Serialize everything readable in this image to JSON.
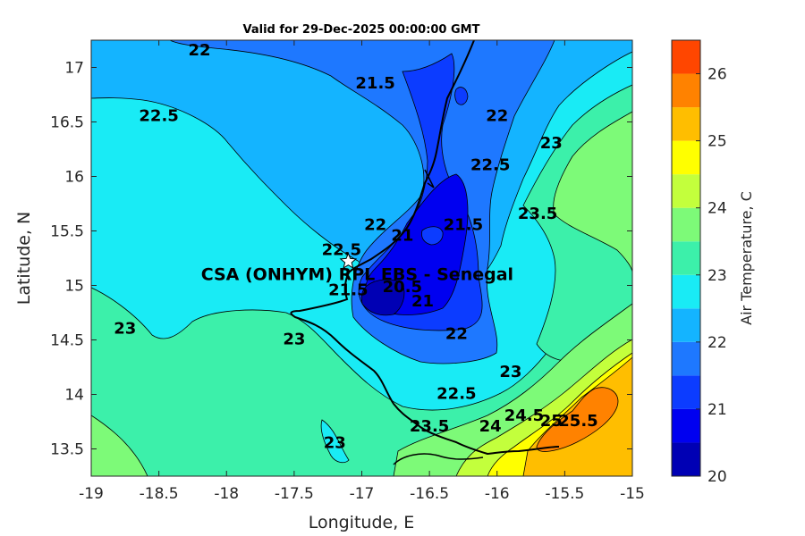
{
  "chart_data": {
    "type": "filled-contour-map",
    "title": "Valid for 29-Dec-2025 00:00:00 GMT",
    "xlabel": "Longitude, E",
    "ylabel": "Latitude, N",
    "xlim": [
      -19,
      -15
    ],
    "ylim": [
      13.25,
      17.25
    ],
    "xticks": [
      -19,
      -18.5,
      -18,
      -17.5,
      -17,
      -16.5,
      -16,
      -15.5,
      -15
    ],
    "yticks": [
      13.5,
      14,
      14.5,
      15,
      15.5,
      16,
      16.5,
      17
    ],
    "xtick_labels": [
      "-19",
      "-18.5",
      "-18",
      "-17.5",
      "-17",
      "-16.5",
      "-16",
      "-15.5",
      "-15"
    ],
    "ytick_labels": [
      "13.5",
      "14",
      "14.5",
      "15",
      "15.5",
      "16",
      "16.5",
      "17"
    ],
    "colorbar": {
      "label": "Air Temperature, C",
      "range": [
        20,
        26.5
      ],
      "ticks": [
        "20",
        "21",
        "22",
        "23",
        "24",
        "25",
        "26"
      ],
      "levels": [
        {
          "from": 20.0,
          "to": 20.5,
          "color": "#0000b4"
        },
        {
          "from": 20.5,
          "to": 21.0,
          "color": "#0000f0"
        },
        {
          "from": 21.0,
          "to": 21.5,
          "color": "#0c3cff"
        },
        {
          "from": 21.5,
          "to": 22.0,
          "color": "#1e78ff"
        },
        {
          "from": 22.0,
          "to": 22.5,
          "color": "#14b4ff"
        },
        {
          "from": 22.5,
          "to": 23.0,
          "color": "#19ebf5"
        },
        {
          "from": 23.0,
          "to": 23.5,
          "color": "#3cf0aa"
        },
        {
          "from": 23.5,
          "to": 24.0,
          "color": "#7dfa78"
        },
        {
          "from": 24.0,
          "to": 24.5,
          "color": "#c3ff3c"
        },
        {
          "from": 24.5,
          "to": 25.0,
          "color": "#ffff00"
        },
        {
          "from": 25.0,
          "to": 25.5,
          "color": "#ffbe00"
        },
        {
          "from": 25.5,
          "to": 26.0,
          "color": "#ff8200"
        },
        {
          "from": 26.0,
          "to": 26.5,
          "color": "#ff4600"
        },
        {
          "from": 26.5,
          "to": 27.0,
          "color": "#ff0000"
        }
      ]
    },
    "contour_labels": [
      {
        "text": "22",
        "lon": -18.2,
        "lat": 17.15
      },
      {
        "text": "21.5",
        "lon": -16.9,
        "lat": 16.85
      },
      {
        "text": "22.5",
        "lon": -18.5,
        "lat": 16.55
      },
      {
        "text": "22",
        "lon": -16.0,
        "lat": 16.55
      },
      {
        "text": "22.5",
        "lon": -16.05,
        "lat": 16.1
      },
      {
        "text": "23",
        "lon": -15.6,
        "lat": 16.3
      },
      {
        "text": "23.5",
        "lon": -15.7,
        "lat": 15.65
      },
      {
        "text": "22",
        "lon": -16.9,
        "lat": 15.55
      },
      {
        "text": "21",
        "lon": -16.7,
        "lat": 15.45
      },
      {
        "text": "21.5",
        "lon": -16.25,
        "lat": 15.55
      },
      {
        "text": "22.5",
        "lon": -17.15,
        "lat": 15.32
      },
      {
        "text": "21.5",
        "lon": -17.1,
        "lat": 14.95
      },
      {
        "text": "20.5",
        "lon": -16.7,
        "lat": 14.98
      },
      {
        "text": "21",
        "lon": -16.55,
        "lat": 14.85
      },
      {
        "text": "22",
        "lon": -16.3,
        "lat": 14.55
      },
      {
        "text": "23",
        "lon": -18.75,
        "lat": 14.6
      },
      {
        "text": "23",
        "lon": -17.5,
        "lat": 14.5
      },
      {
        "text": "22.5",
        "lon": -16.3,
        "lat": 14.0
      },
      {
        "text": "23",
        "lon": -15.9,
        "lat": 14.2
      },
      {
        "text": "23.5",
        "lon": -16.5,
        "lat": 13.7
      },
      {
        "text": "24",
        "lon": -16.05,
        "lat": 13.7
      },
      {
        "text": "24.5",
        "lon": -15.8,
        "lat": 13.8
      },
      {
        "text": "25",
        "lon": -15.6,
        "lat": 13.75
      },
      {
        "text": "25.5",
        "lon": -15.4,
        "lat": 13.75
      },
      {
        "text": "23",
        "lon": -17.2,
        "lat": 13.55
      }
    ],
    "station": {
      "name": "CSA (ONHYM) RPL EBS  - Senegal",
      "lon": -17.1,
      "lat": 15.22
    }
  }
}
